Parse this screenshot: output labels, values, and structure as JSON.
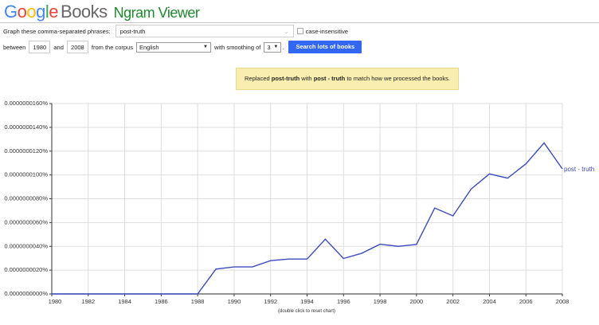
{
  "header": {
    "logo_text": "Google",
    "books": "Books",
    "title": "Ngram Viewer"
  },
  "form": {
    "phrases_label": "Graph these comma-separated phrases:",
    "phrases_value": "post-truth",
    "case_insensitive_label": "case-insensitive",
    "case_insensitive_checked": false,
    "between_label": "between",
    "start_year": "1980",
    "and_label": "and",
    "end_year": "2008",
    "corpus_label": "from the corpus",
    "corpus_value": "English",
    "smoothing_label": "with smoothing of",
    "smoothing_value": "3",
    "period": ".",
    "search_button": "Search lots of books"
  },
  "notice": {
    "pre": "Replaced ",
    "orig": "post-truth",
    "mid": " with ",
    "repl": "post - truth",
    "post": " to match how we processed the books."
  },
  "chart_data": {
    "type": "line",
    "x": [
      1980,
      1981,
      1982,
      1983,
      1984,
      1985,
      1986,
      1987,
      1988,
      1989,
      1990,
      1991,
      1992,
      1993,
      1994,
      1995,
      1996,
      1997,
      1998,
      1999,
      2000,
      2001,
      2002,
      2003,
      2004,
      2005,
      2006,
      2007,
      2008
    ],
    "series": [
      {
        "name": "post - truth",
        "color": "#3b4cc0",
        "values": [
          0,
          0,
          0,
          0,
          0,
          0,
          0,
          0,
          0,
          2.09e-08,
          2.27e-08,
          2.27e-08,
          2.8e-08,
          2.93e-08,
          2.93e-08,
          4.6e-08,
          2.98e-08,
          3.42e-08,
          4.18e-08,
          4e-08,
          4.16e-08,
          7.22e-08,
          6.56e-08,
          8.82e-08,
          1.009e-07,
          9.73e-08,
          1.093e-07,
          1.269e-07,
          1.051e-07
        ]
      }
    ],
    "xlim": [
      1980,
      2008
    ],
    "ylim": [
      0,
      1.6e-07
    ],
    "x_ticks": [
      "1980",
      "1982",
      "1984",
      "1986",
      "1988",
      "1990",
      "1992",
      "1994",
      "1996",
      "1998",
      "2000",
      "2002",
      "2004",
      "2006",
      "2008"
    ],
    "y_ticks": [
      "0.0000000000%",
      "0.0000000020%",
      "0.0000000040%",
      "0.0000000060%",
      "0.0000000080%",
      "0.0000000100%",
      "0.0000000120%",
      "0.0000000140%",
      "0.0000000160%"
    ],
    "grid": true,
    "legend": "right-end-label"
  },
  "footer": {
    "reset_hint": "(double click to reset chart)"
  }
}
